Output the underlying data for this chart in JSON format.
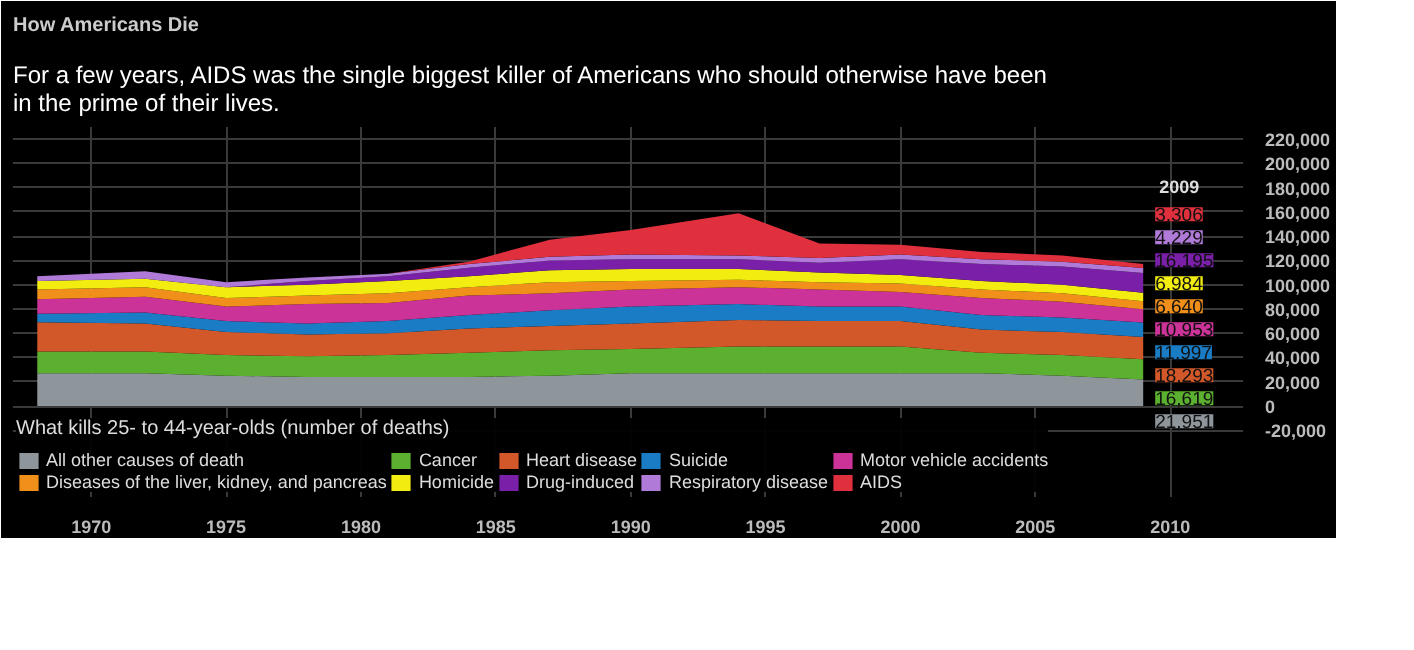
{
  "chart_data": {
    "type": "area",
    "stacked": true,
    "subtitle": "How Americans Die",
    "title": "For a few years, AIDS was the single biggest killer of Americans who should otherwise have been in the prime of their lives.",
    "legend_title": "What kills 25- to 44-year-olds (number of deaths)",
    "legend": "bottom",
    "grid": true,
    "x": [
      1968,
      1972,
      1975,
      1978,
      1981,
      1984,
      1987,
      1990,
      1994,
      1997,
      2000,
      2003,
      2006,
      2009
    ],
    "xlim": [
      1967.1,
      2012.7
    ],
    "xticks": [
      1970,
      1975,
      1980,
      1985,
      1990,
      1995,
      2000,
      2005,
      2010
    ],
    "ylim": [
      -75000,
      230000
    ],
    "yticks": [
      {
        "value": -20000,
        "label": "-20,000"
      },
      {
        "value": 0,
        "label": "0"
      },
      {
        "value": 20000,
        "label": "20,000"
      },
      {
        "value": 40000,
        "label": "40,000"
      },
      {
        "value": 60000,
        "label": "60,000"
      },
      {
        "value": 80000,
        "label": "80,000"
      },
      {
        "value": 100000,
        "label": "100,000"
      },
      {
        "value": 120000,
        "label": "120,000"
      },
      {
        "value": 140000,
        "label": "140,000"
      },
      {
        "value": 160000,
        "label": "160,000"
      },
      {
        "value": 180000,
        "label": "180,000"
      },
      {
        "value": 200000,
        "label": "200,000"
      },
      {
        "value": 220000,
        "label": "220,000"
      }
    ],
    "annotations": [
      "2009"
    ],
    "series": [
      {
        "name": "All other causes of death",
        "color": "#8e969c",
        "values": [
          27000,
          27000,
          25000,
          24000,
          24000,
          24000,
          25000,
          27000,
          27000,
          27000,
          27000,
          27000,
          25000,
          21951
        ],
        "value_labels": [
          null,
          null,
          null,
          null,
          null,
          null,
          null,
          null,
          null,
          null,
          null,
          null,
          null,
          "21,951"
        ]
      },
      {
        "name": "Cancer",
        "color": "#5cb030",
        "values": [
          18000,
          18000,
          17000,
          17000,
          18000,
          20000,
          21000,
          20000,
          22000,
          22000,
          22000,
          17000,
          17000,
          16619
        ],
        "value_labels": [
          null,
          null,
          null,
          null,
          null,
          null,
          null,
          null,
          null,
          null,
          null,
          null,
          null,
          "16,619"
        ]
      },
      {
        "name": "Heart disease",
        "color": "#d2582a",
        "values": [
          24000,
          23000,
          19000,
          18000,
          18000,
          20000,
          20000,
          21000,
          22000,
          21000,
          21000,
          19000,
          19000,
          18293
        ],
        "value_labels": [
          null,
          null,
          null,
          null,
          null,
          null,
          null,
          null,
          null,
          null,
          null,
          null,
          null,
          "18,293"
        ]
      },
      {
        "name": "Suicide",
        "color": "#1a7cc4",
        "values": [
          7000,
          9000,
          9000,
          9000,
          10000,
          11000,
          13000,
          14000,
          13000,
          12000,
          12000,
          12000,
          12000,
          11997
        ],
        "value_labels": [
          null,
          null,
          null,
          null,
          null,
          null,
          null,
          null,
          null,
          null,
          null,
          null,
          null,
          "11,997"
        ]
      },
      {
        "name": "Motor vehicle accidents",
        "color": "#cc3399",
        "values": [
          12000,
          13000,
          12000,
          16000,
          15000,
          16000,
          14000,
          14000,
          14000,
          14000,
          12000,
          14000,
          13000,
          10953
        ],
        "value_labels": [
          null,
          null,
          null,
          null,
          null,
          null,
          null,
          null,
          null,
          null,
          null,
          null,
          null,
          "10,953"
        ]
      },
      {
        "name": "Diseases of the liver, kidney, and pancreas",
        "color": "#f0901a",
        "values": [
          8000,
          8000,
          7000,
          7000,
          8000,
          7000,
          9000,
          7000,
          6000,
          6000,
          7000,
          7000,
          7000,
          6640
        ],
        "value_labels": [
          null,
          null,
          null,
          null,
          null,
          null,
          null,
          null,
          null,
          null,
          null,
          null,
          null,
          "6,640"
        ]
      },
      {
        "name": "Homicide",
        "color": "#f2ec10",
        "values": [
          7000,
          7000,
          9000,
          9000,
          10000,
          9000,
          10000,
          10000,
          9000,
          8000,
          7000,
          7000,
          7000,
          6984
        ],
        "value_labels": [
          null,
          null,
          null,
          null,
          null,
          null,
          null,
          null,
          null,
          null,
          null,
          null,
          null,
          "6,984"
        ]
      },
      {
        "name": "Drug-induced",
        "color": "#7a1fa8",
        "values": [
          0,
          0,
          0,
          3000,
          4000,
          7000,
          8000,
          8000,
          8000,
          8000,
          13000,
          14000,
          15000,
          16195
        ],
        "value_labels": [
          null,
          null,
          null,
          null,
          null,
          null,
          null,
          null,
          null,
          null,
          null,
          null,
          null,
          "16,195"
        ]
      },
      {
        "name": "Respiratory disease",
        "color": "#b07ad8",
        "values": [
          4000,
          6000,
          4000,
          3000,
          2000,
          3000,
          3000,
          4000,
          3000,
          4000,
          4000,
          4000,
          4000,
          4229
        ],
        "value_labels": [
          null,
          null,
          null,
          null,
          null,
          null,
          null,
          null,
          null,
          null,
          null,
          null,
          null,
          "4,229"
        ]
      },
      {
        "name": "AIDS",
        "color": "#e0303e",
        "values": [
          0,
          0,
          0,
          0,
          0,
          2000,
          14000,
          20000,
          35000,
          12000,
          8000,
          6000,
          5000,
          3306
        ],
        "value_labels": [
          null,
          null,
          null,
          null,
          null,
          null,
          null,
          null,
          null,
          null,
          null,
          null,
          null,
          "3,306"
        ]
      }
    ]
  }
}
